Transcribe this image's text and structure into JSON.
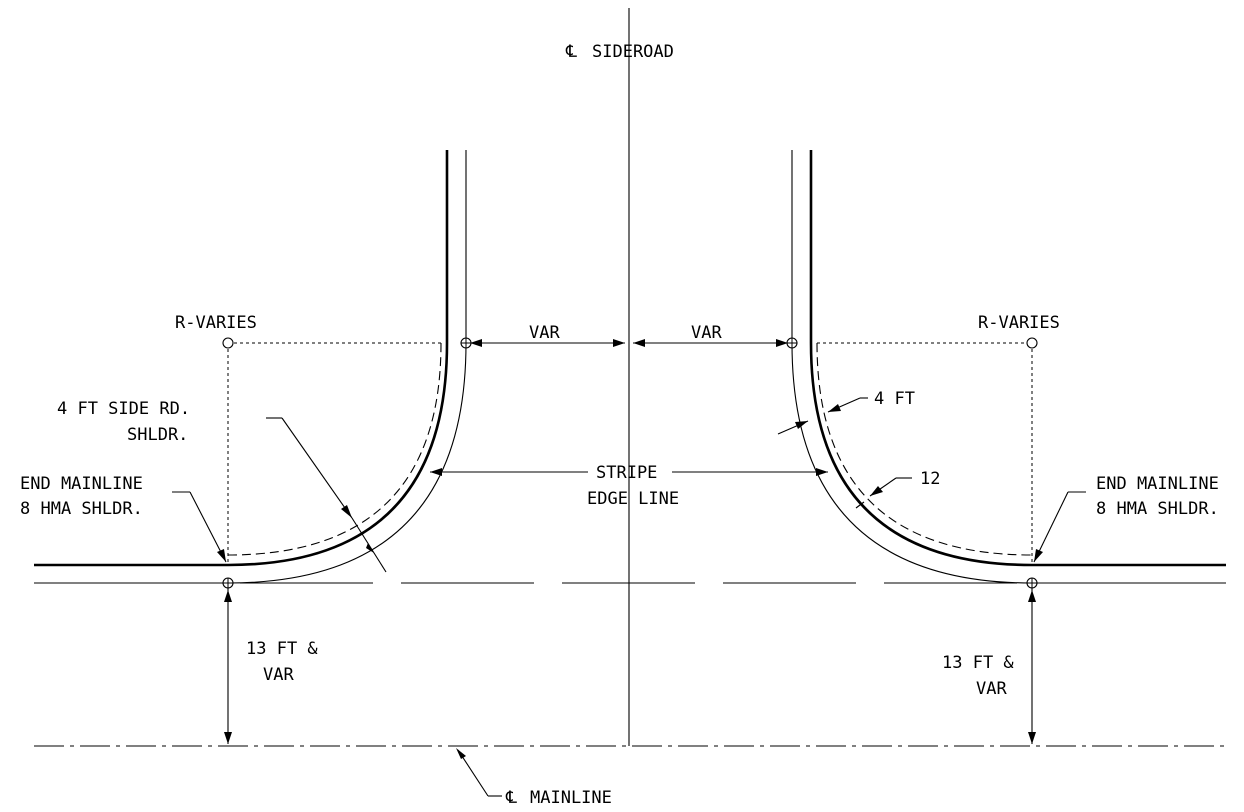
{
  "labels": {
    "cl_sideroad": "SIDEROAD",
    "cl_mainline": "MAINLINE",
    "cl_symbol": "℄",
    "r_varies_left": "R-VARIES",
    "r_varies_right": "R-VARIES",
    "var_left": "VAR",
    "var_right": "VAR",
    "side_shoulder_line1": "4 FT SIDE RD.",
    "side_shoulder_line2": "SHLDR.",
    "end_mainline_left_line1": "END MAINLINE",
    "end_mainline_left_line2": "8 HMA SHLDR.",
    "end_mainline_right_line1": "END MAINLINE",
    "end_mainline_right_line2": "8 HMA SHLDR.",
    "stripe_line1": "STRIPE",
    "stripe_line2": "EDGE LINE",
    "four_ft": "4 FT",
    "twelve": "12",
    "dim_left_line1": "13 FT &",
    "dim_left_line2": "VAR",
    "dim_right_line1": "13 FT &",
    "dim_right_line2": "VAR"
  }
}
